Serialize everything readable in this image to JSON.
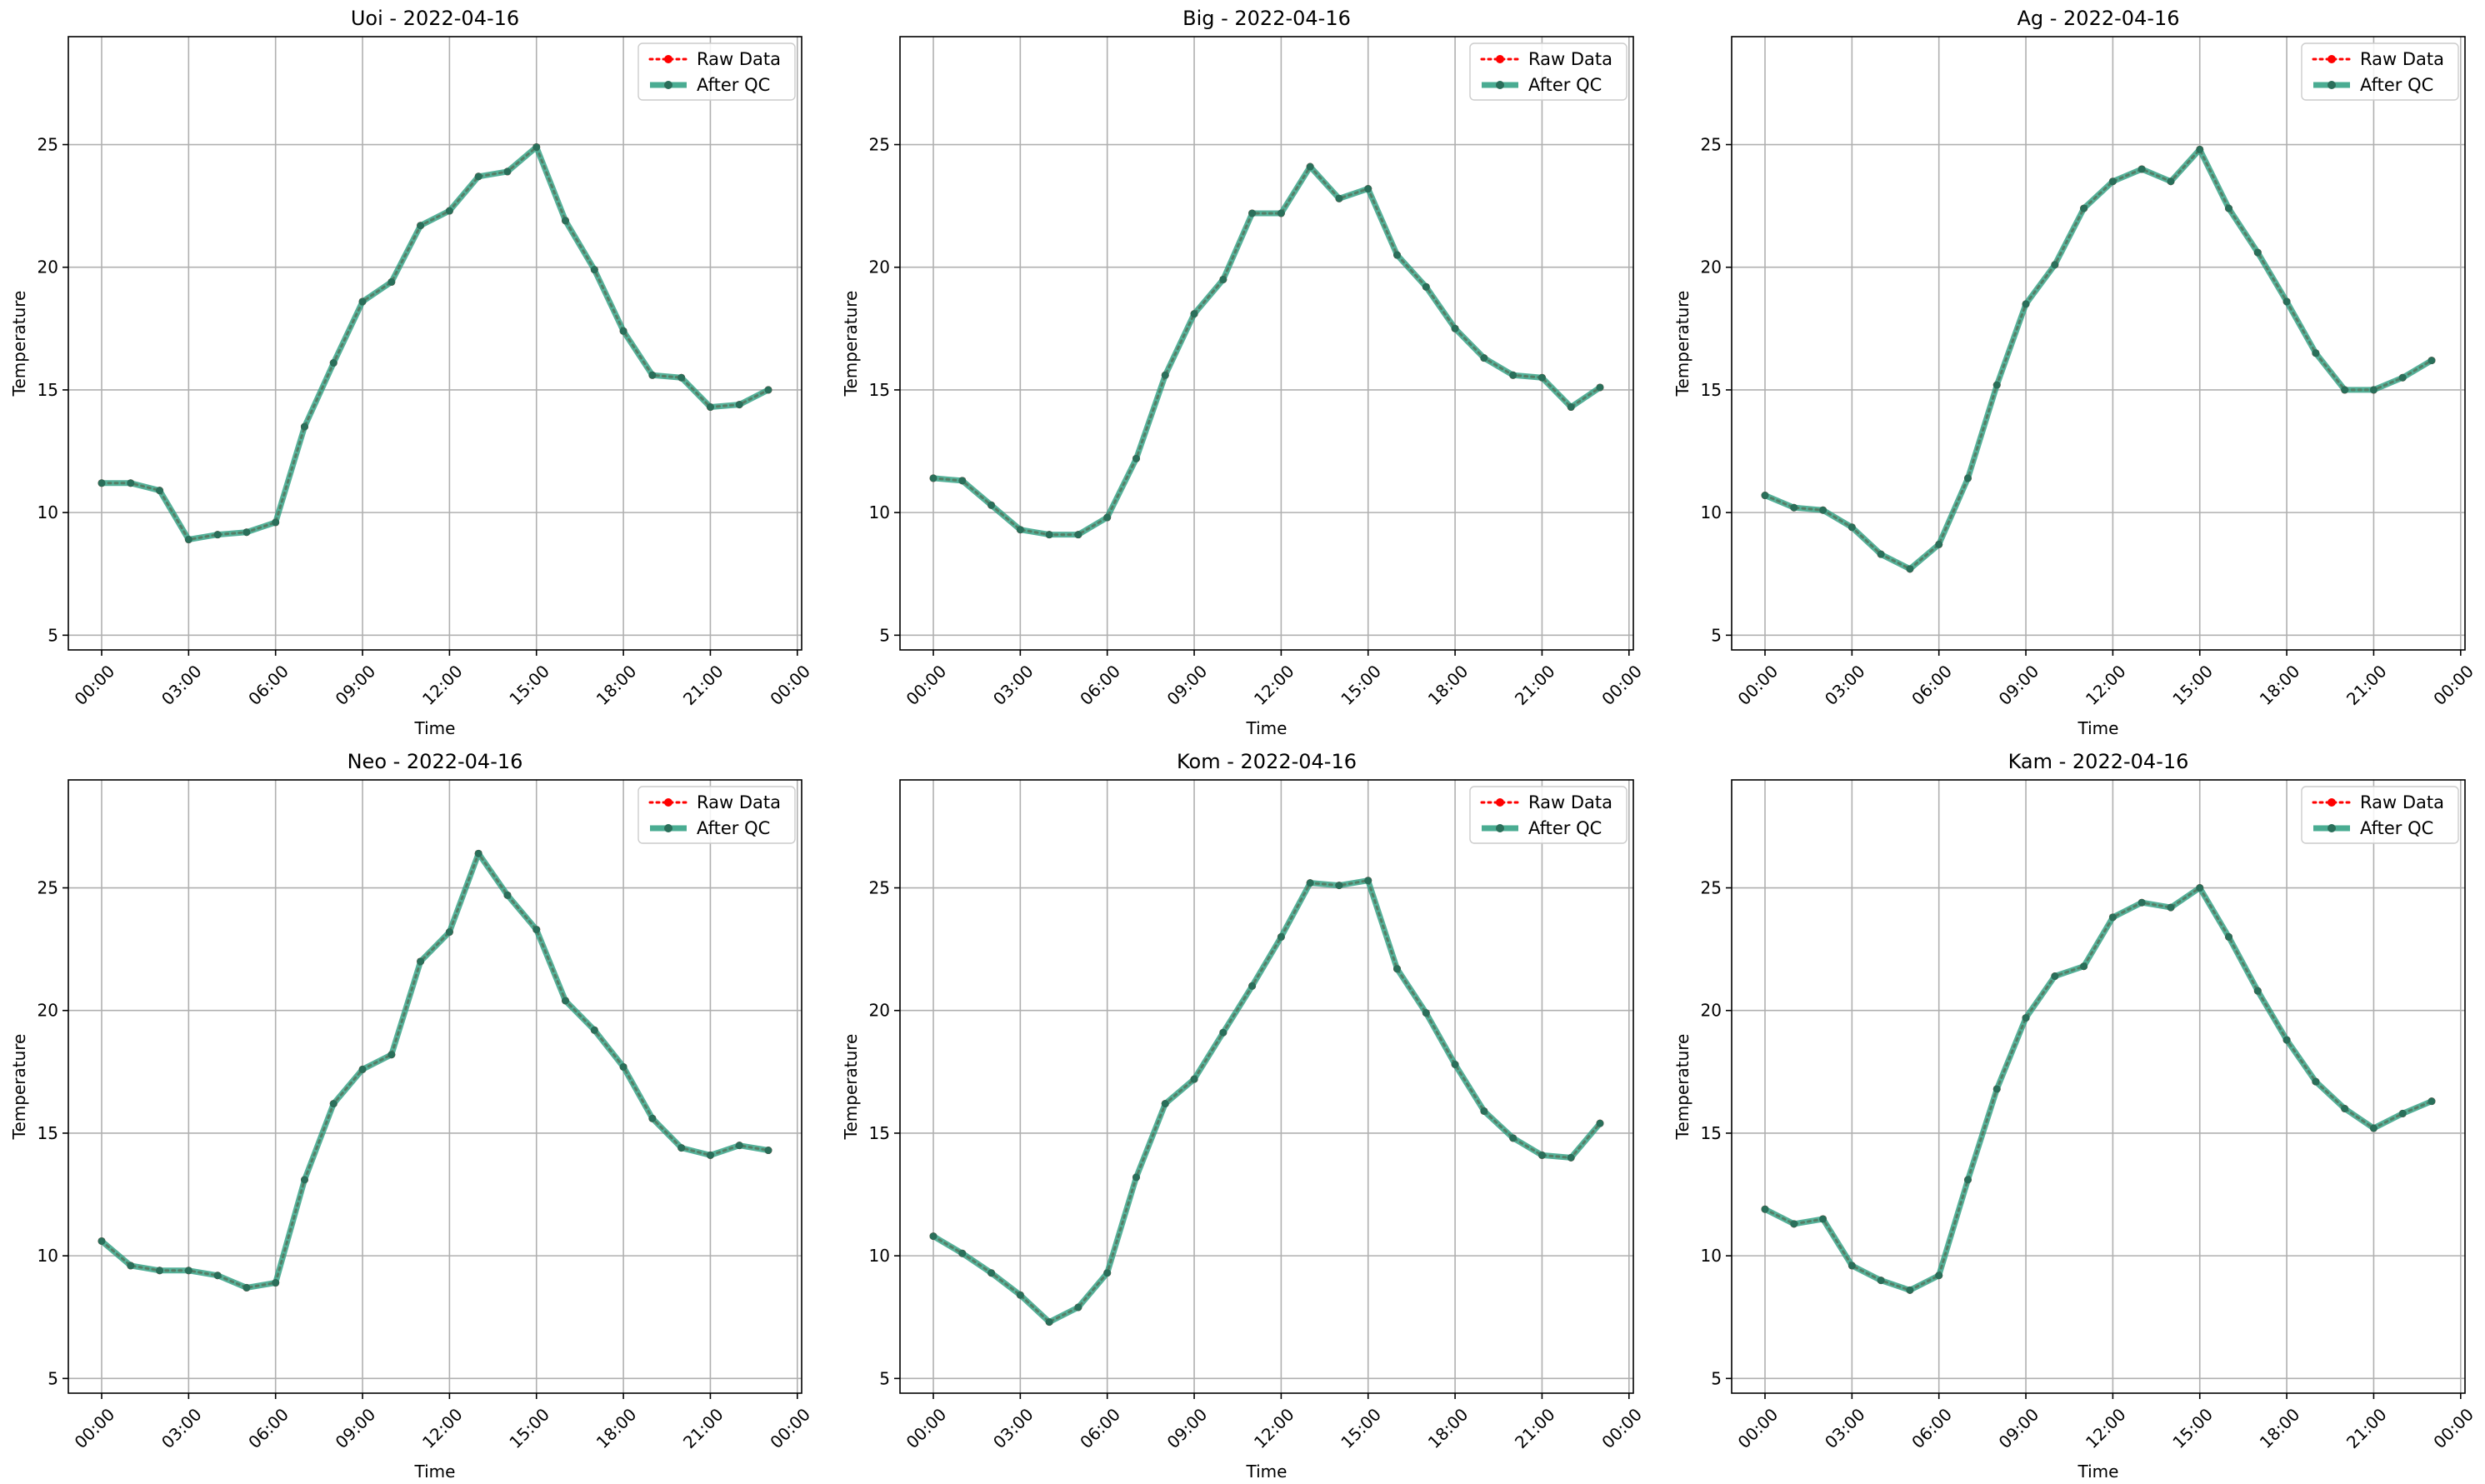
{
  "chart_data": [
    {
      "type": "line",
      "title": "Uoi - 2022-04-16",
      "xlabel": "Time",
      "ylabel": "Temperature",
      "xtick_labels": [
        "00:00",
        "03:00",
        "06:00",
        "09:00",
        "12:00",
        "15:00",
        "18:00",
        "21:00",
        "00:00"
      ],
      "yticks": [
        5,
        10,
        15,
        20,
        25
      ],
      "xlim_hours": [
        -1.15,
        24.15
      ],
      "ylim": [
        4.4,
        29.4
      ],
      "grid": true,
      "legend_position": "top-right",
      "x_hours": [
        0,
        1,
        2,
        3,
        4,
        5,
        6,
        7,
        8,
        9,
        10,
        11,
        12,
        13,
        14,
        15,
        16,
        17,
        18,
        19,
        20,
        21,
        22,
        23
      ],
      "series": [
        {
          "name": "Raw Data",
          "color": "#ff0000",
          "style": "dotted",
          "values": [
            11.2,
            11.2,
            10.9,
            8.9,
            9.1,
            9.2,
            9.6,
            13.5,
            16.1,
            18.6,
            19.4,
            21.7,
            22.3,
            23.7,
            23.9,
            24.9,
            21.9,
            19.9,
            17.4,
            15.6,
            15.5,
            14.3,
            14.4,
            15.0
          ]
        },
        {
          "name": "After QC",
          "color": "#2a9d7f",
          "style": "solid",
          "values": [
            11.2,
            11.2,
            10.9,
            8.9,
            9.1,
            9.2,
            9.6,
            13.5,
            16.1,
            18.6,
            19.4,
            21.7,
            22.3,
            23.7,
            23.9,
            24.9,
            21.9,
            19.9,
            17.4,
            15.6,
            15.5,
            14.3,
            14.4,
            15.0
          ]
        }
      ]
    },
    {
      "type": "line",
      "title": "Big - 2022-04-16",
      "xlabel": "Time",
      "ylabel": "Temperature",
      "xtick_labels": [
        "00:00",
        "03:00",
        "06:00",
        "09:00",
        "12:00",
        "15:00",
        "18:00",
        "21:00",
        "00:00"
      ],
      "yticks": [
        5,
        10,
        15,
        20,
        25
      ],
      "xlim_hours": [
        -1.15,
        24.15
      ],
      "ylim": [
        4.4,
        29.4
      ],
      "grid": true,
      "legend_position": "top-right",
      "x_hours": [
        0,
        1,
        2,
        3,
        4,
        5,
        6,
        7,
        8,
        9,
        10,
        11,
        12,
        13,
        14,
        15,
        16,
        17,
        18,
        19,
        20,
        21,
        22,
        23
      ],
      "series": [
        {
          "name": "Raw Data",
          "color": "#ff0000",
          "style": "dotted",
          "values": [
            11.4,
            11.3,
            10.3,
            9.3,
            9.1,
            9.1,
            9.8,
            12.2,
            15.6,
            18.1,
            19.5,
            22.2,
            22.2,
            24.1,
            22.8,
            23.2,
            20.5,
            19.2,
            17.5,
            16.3,
            15.6,
            15.5,
            14.3,
            15.1
          ]
        },
        {
          "name": "After QC",
          "color": "#2a9d7f",
          "style": "solid",
          "values": [
            11.4,
            11.3,
            10.3,
            9.3,
            9.1,
            9.1,
            9.8,
            12.2,
            15.6,
            18.1,
            19.5,
            22.2,
            22.2,
            24.1,
            22.8,
            23.2,
            20.5,
            19.2,
            17.5,
            16.3,
            15.6,
            15.5,
            14.3,
            15.1
          ]
        }
      ]
    },
    {
      "type": "line",
      "title": "Ag - 2022-04-16",
      "xlabel": "Time",
      "ylabel": "Temperature",
      "xtick_labels": [
        "00:00",
        "03:00",
        "06:00",
        "09:00",
        "12:00",
        "15:00",
        "18:00",
        "21:00",
        "00:00"
      ],
      "yticks": [
        5,
        10,
        15,
        20,
        25
      ],
      "xlim_hours": [
        -1.15,
        24.15
      ],
      "ylim": [
        4.4,
        29.4
      ],
      "grid": true,
      "legend_position": "top-right",
      "x_hours": [
        0,
        1,
        2,
        3,
        4,
        5,
        6,
        7,
        8,
        9,
        10,
        11,
        12,
        13,
        14,
        15,
        16,
        17,
        18,
        19,
        20,
        21,
        22,
        23
      ],
      "series": [
        {
          "name": "Raw Data",
          "color": "#ff0000",
          "style": "dotted",
          "values": [
            10.7,
            10.2,
            10.1,
            9.4,
            8.3,
            7.7,
            8.7,
            11.4,
            15.2,
            18.5,
            20.1,
            22.4,
            23.5,
            24.0,
            23.5,
            24.8,
            22.4,
            20.6,
            18.6,
            16.5,
            15.0,
            15.0,
            15.5,
            16.2
          ]
        },
        {
          "name": "After QC",
          "color": "#2a9d7f",
          "style": "solid",
          "values": [
            10.7,
            10.2,
            10.1,
            9.4,
            8.3,
            7.7,
            8.7,
            11.4,
            15.2,
            18.5,
            20.1,
            22.4,
            23.5,
            24.0,
            23.5,
            24.8,
            22.4,
            20.6,
            18.6,
            16.5,
            15.0,
            15.0,
            15.5,
            16.2
          ]
        }
      ]
    },
    {
      "type": "line",
      "title": "Neo - 2022-04-16",
      "xlabel": "Time",
      "ylabel": "Temperature",
      "xtick_labels": [
        "00:00",
        "03:00",
        "06:00",
        "09:00",
        "12:00",
        "15:00",
        "18:00",
        "21:00",
        "00:00"
      ],
      "yticks": [
        5,
        10,
        15,
        20,
        25
      ],
      "xlim_hours": [
        -1.15,
        24.15
      ],
      "ylim": [
        4.4,
        29.4
      ],
      "grid": true,
      "legend_position": "top-right",
      "x_hours": [
        0,
        1,
        2,
        3,
        4,
        5,
        6,
        7,
        8,
        9,
        10,
        11,
        12,
        13,
        14,
        15,
        16,
        17,
        18,
        19,
        20,
        21,
        22,
        23
      ],
      "series": [
        {
          "name": "Raw Data",
          "color": "#ff0000",
          "style": "dotted",
          "values": [
            10.6,
            9.6,
            9.4,
            9.4,
            9.2,
            8.7,
            8.9,
            13.1,
            16.2,
            17.6,
            18.2,
            22.0,
            23.2,
            26.4,
            24.7,
            23.3,
            20.4,
            19.2,
            17.7,
            15.6,
            14.4,
            14.1,
            14.5,
            14.3
          ]
        },
        {
          "name": "After QC",
          "color": "#2a9d7f",
          "style": "solid",
          "values": [
            10.6,
            9.6,
            9.4,
            9.4,
            9.2,
            8.7,
            8.9,
            13.1,
            16.2,
            17.6,
            18.2,
            22.0,
            23.2,
            26.4,
            24.7,
            23.3,
            20.4,
            19.2,
            17.7,
            15.6,
            14.4,
            14.1,
            14.5,
            14.3
          ]
        }
      ]
    },
    {
      "type": "line",
      "title": "Kom - 2022-04-16",
      "xlabel": "Time",
      "ylabel": "Temperature",
      "xtick_labels": [
        "00:00",
        "03:00",
        "06:00",
        "09:00",
        "12:00",
        "15:00",
        "18:00",
        "21:00",
        "00:00"
      ],
      "yticks": [
        5,
        10,
        15,
        20,
        25
      ],
      "xlim_hours": [
        -1.15,
        24.15
      ],
      "ylim": [
        4.4,
        29.4
      ],
      "grid": true,
      "legend_position": "top-right",
      "x_hours": [
        0,
        1,
        2,
        3,
        4,
        5,
        6,
        7,
        8,
        9,
        10,
        11,
        12,
        13,
        14,
        15,
        16,
        17,
        18,
        19,
        20,
        21,
        22,
        23
      ],
      "series": [
        {
          "name": "Raw Data",
          "color": "#ff0000",
          "style": "dotted",
          "values": [
            10.8,
            10.1,
            9.3,
            8.4,
            7.3,
            7.9,
            9.3,
            13.2,
            16.2,
            17.2,
            19.1,
            21.0,
            23.0,
            25.2,
            25.1,
            25.3,
            21.7,
            19.9,
            17.8,
            15.9,
            14.8,
            14.1,
            14.0,
            15.4
          ]
        },
        {
          "name": "After QC",
          "color": "#2a9d7f",
          "style": "solid",
          "values": [
            10.8,
            10.1,
            9.3,
            8.4,
            7.3,
            7.9,
            9.3,
            13.2,
            16.2,
            17.2,
            19.1,
            21.0,
            23.0,
            25.2,
            25.1,
            25.3,
            21.7,
            19.9,
            17.8,
            15.9,
            14.8,
            14.1,
            14.0,
            15.4
          ]
        }
      ]
    },
    {
      "type": "line",
      "title": "Kam - 2022-04-16",
      "xlabel": "Time",
      "ylabel": "Temperature",
      "xtick_labels": [
        "00:00",
        "03:00",
        "06:00",
        "09:00",
        "12:00",
        "15:00",
        "18:00",
        "21:00",
        "00:00"
      ],
      "yticks": [
        5,
        10,
        15,
        20,
        25
      ],
      "xlim_hours": [
        -1.15,
        24.15
      ],
      "ylim": [
        4.4,
        29.4
      ],
      "grid": true,
      "legend_position": "top-right",
      "x_hours": [
        0,
        1,
        2,
        3,
        4,
        5,
        6,
        7,
        8,
        9,
        10,
        11,
        12,
        13,
        14,
        15,
        16,
        17,
        18,
        19,
        20,
        21,
        22,
        23
      ],
      "series": [
        {
          "name": "Raw Data",
          "color": "#ff0000",
          "style": "dotted",
          "values": [
            11.9,
            11.3,
            11.5,
            9.6,
            9.0,
            8.6,
            9.2,
            13.1,
            16.8,
            19.7,
            21.4,
            21.8,
            23.8,
            24.4,
            24.2,
            25.0,
            23.0,
            20.8,
            18.8,
            17.1,
            16.0,
            15.2,
            15.8,
            16.3
          ]
        },
        {
          "name": "After QC",
          "color": "#2a9d7f",
          "style": "solid",
          "values": [
            11.9,
            11.3,
            11.5,
            9.6,
            9.0,
            8.6,
            9.2,
            13.1,
            16.8,
            19.7,
            21.4,
            21.8,
            23.8,
            24.4,
            24.2,
            25.0,
            23.0,
            20.8,
            18.8,
            17.1,
            16.0,
            15.2,
            15.8,
            16.3
          ]
        }
      ]
    }
  ]
}
